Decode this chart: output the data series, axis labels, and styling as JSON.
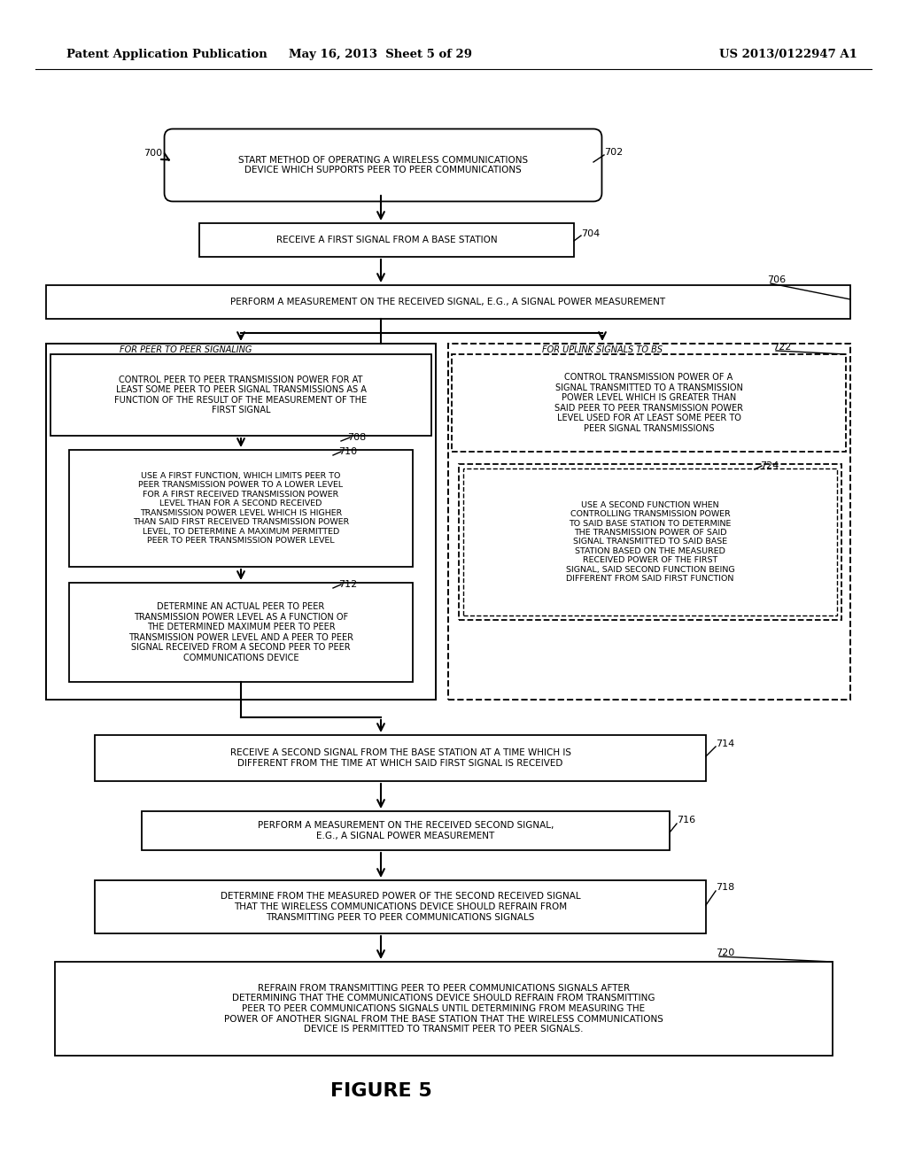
{
  "bg_color": "#ffffff",
  "header_left": "Patent Application Publication",
  "header_center": "May 16, 2013  Sheet 5 of 29",
  "header_right": "US 2013/0122947 A1",
  "figure_title": "FIGURE 5"
}
